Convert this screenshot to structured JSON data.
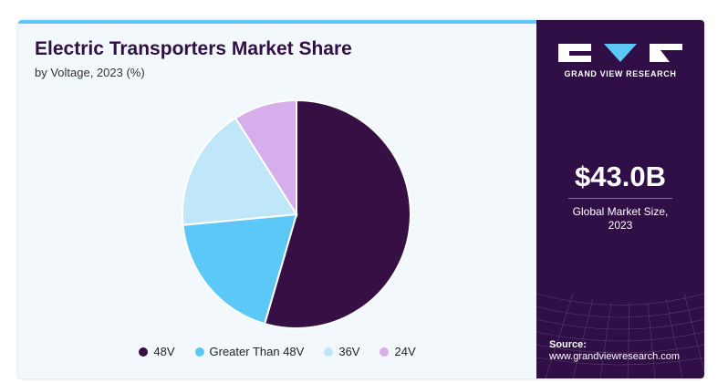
{
  "header": {
    "title": "Electric Transporters Market Share",
    "subtitle": "by Voltage, 2023 (%)"
  },
  "chart_data": {
    "type": "pie",
    "title": "Electric Transporters Market Share",
    "subtitle": "by Voltage, 2023 (%)",
    "categories": [
      "48V",
      "Greater Than 48V",
      "36V",
      "24V"
    ],
    "values": [
      54.5,
      19,
      17.5,
      9
    ],
    "colors": [
      "#361044",
      "#5bc8f7",
      "#bfe6f9",
      "#d6aeeb"
    ],
    "start_angle_deg": 0,
    "direction": "clockwise",
    "legend_position": "bottom"
  },
  "sidebar": {
    "brand": "GRAND VIEW RESEARCH",
    "market_size": "$43.0B",
    "market_size_label_line1": "Global Market Size,",
    "market_size_label_line2": "2023",
    "source_label": "Source:",
    "source_url": "www.grandviewresearch.com"
  }
}
